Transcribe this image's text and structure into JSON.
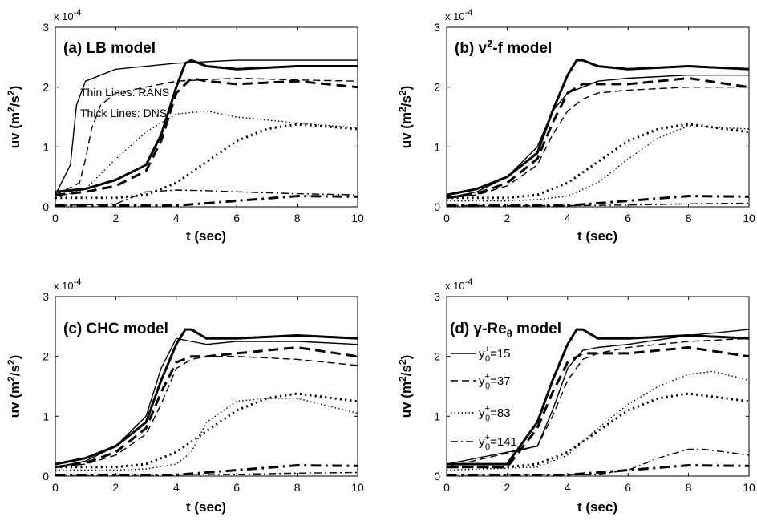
{
  "shared": {
    "xlabel": "t (sec)",
    "ylabel": "uv (m²/s²)",
    "ylabel_parts": {
      "base": "uv (m",
      "sup": "2",
      "mid": "/s",
      "sup2": "2",
      "end": ")"
    },
    "scale": "x 10",
    "scale_exp": "-4",
    "xticks": [
      "0",
      "2",
      "4",
      "6",
      "8",
      "10"
    ],
    "yticks": [
      "0",
      "1",
      "2",
      "3"
    ]
  },
  "panels": [
    {
      "title": "(a) LB model",
      "notes": [
        "Thin Lines: RANS",
        "Thick Lines: DNS"
      ]
    },
    {
      "title": "(b) v²-f model",
      "title_parts": {
        "a": "(b) v",
        "sup": "2",
        "b": "-f model"
      }
    },
    {
      "title": "(c) CHC model"
    },
    {
      "title": "(d) γ-Reθ model",
      "title_parts": {
        "a": "(d) γ-Re",
        "sub": "θ",
        "b": " model"
      },
      "legend": [
        {
          "label": "y0+=15",
          "y": "y",
          "sub": "0",
          "sup": "+",
          "val": "=15",
          "style": "solid"
        },
        {
          "label": "y0+=37",
          "y": "y",
          "sub": "0",
          "sup": "+",
          "val": "=37",
          "style": "dash"
        },
        {
          "label": "y0+=83",
          "y": "y",
          "sub": "0",
          "sup": "+",
          "val": "=83",
          "style": "dot"
        },
        {
          "label": "y0+=141",
          "y": "y",
          "sub": "0",
          "sup": "+",
          "val": "=141",
          "style": "dashdot"
        }
      ]
    }
  ],
  "chart_data": [
    {
      "type": "line",
      "title": "(a) LB model",
      "xlabel": "t (sec)",
      "ylabel": "uv (m²/s²)",
      "xlim": [
        0,
        10
      ],
      "ylim": [
        0,
        3
      ],
      "y_scale": "x 10^-4",
      "series": [
        {
          "kind": "DNS",
          "style": "solid",
          "x": [
            0,
            1,
            2,
            3,
            3.5,
            4,
            4.3,
            4.5,
            5,
            6,
            8,
            10
          ],
          "y": [
            0.25,
            0.3,
            0.45,
            0.7,
            1.2,
            2.0,
            2.4,
            2.45,
            2.35,
            2.3,
            2.35,
            2.35
          ]
        },
        {
          "kind": "DNS",
          "style": "dash",
          "x": [
            0,
            1,
            2,
            3,
            3.5,
            4,
            4.5,
            5,
            6,
            8,
            10
          ],
          "y": [
            0.2,
            0.25,
            0.35,
            0.6,
            1.1,
            1.9,
            2.15,
            2.1,
            2.05,
            2.1,
            2.0
          ]
        },
        {
          "kind": "DNS",
          "style": "dot",
          "x": [
            0,
            2,
            3,
            4,
            5,
            6,
            7,
            8,
            10
          ],
          "y": [
            0.15,
            0.15,
            0.2,
            0.4,
            0.75,
            1.1,
            1.3,
            1.38,
            1.3
          ]
        },
        {
          "kind": "DNS",
          "style": "dashdot",
          "x": [
            0,
            4,
            6,
            8,
            10
          ],
          "y": [
            0.02,
            0.02,
            0.1,
            0.18,
            0.17
          ]
        },
        {
          "kind": "RANS",
          "style": "solid",
          "x": [
            0,
            0.5,
            0.7,
            1,
            1.5,
            2,
            4,
            6,
            8,
            10
          ],
          "y": [
            0.2,
            0.7,
            1.7,
            2.1,
            2.2,
            2.3,
            2.4,
            2.45,
            2.45,
            2.45
          ]
        },
        {
          "kind": "RANS",
          "style": "dash",
          "x": [
            0,
            0.8,
            1,
            1.2,
            1.5,
            2,
            4,
            6,
            8,
            10
          ],
          "y": [
            0.2,
            0.4,
            0.8,
            1.3,
            1.7,
            1.9,
            2.1,
            2.15,
            2.12,
            2.1
          ]
        },
        {
          "kind": "RANS",
          "style": "dot",
          "x": [
            0,
            1,
            2,
            3,
            4,
            5,
            6,
            8,
            10
          ],
          "y": [
            0.15,
            0.3,
            0.8,
            1.25,
            1.55,
            1.6,
            1.5,
            1.4,
            1.32
          ]
        },
        {
          "kind": "RANS",
          "style": "dashdot",
          "x": [
            0,
            2,
            3,
            4,
            5,
            6,
            8,
            10
          ],
          "y": [
            0.02,
            0.05,
            0.25,
            0.28,
            0.27,
            0.25,
            0.22,
            0.2
          ]
        }
      ]
    },
    {
      "type": "line",
      "title": "(b) v²-f model",
      "xlabel": "t (sec)",
      "ylabel": "uv (m²/s²)",
      "xlim": [
        0,
        10
      ],
      "ylim": [
        0,
        3
      ],
      "y_scale": "x 10^-4",
      "series": [
        {
          "kind": "DNS",
          "style": "solid",
          "x": [
            0,
            1,
            2,
            3,
            3.5,
            4,
            4.3,
            4.5,
            5,
            6,
            8,
            10
          ],
          "y": [
            0.2,
            0.3,
            0.5,
            0.9,
            1.6,
            2.2,
            2.45,
            2.45,
            2.35,
            2.3,
            2.35,
            2.3
          ]
        },
        {
          "kind": "DNS",
          "style": "dash",
          "x": [
            0,
            1,
            2,
            3,
            3.5,
            4,
            4.5,
            5,
            6,
            8,
            10
          ],
          "y": [
            0.15,
            0.22,
            0.4,
            0.8,
            1.4,
            1.9,
            2.05,
            2.05,
            2.05,
            2.15,
            2.0
          ]
        },
        {
          "kind": "DNS",
          "style": "dot",
          "x": [
            0,
            2,
            3,
            4,
            5,
            6,
            7,
            8,
            10
          ],
          "y": [
            0.15,
            0.15,
            0.2,
            0.4,
            0.75,
            1.1,
            1.3,
            1.38,
            1.25
          ]
        },
        {
          "kind": "DNS",
          "style": "dashdot",
          "x": [
            0,
            4,
            6,
            8,
            10
          ],
          "y": [
            0.02,
            0.02,
            0.1,
            0.18,
            0.17
          ]
        },
        {
          "kind": "RANS",
          "style": "solid",
          "x": [
            0,
            1,
            2,
            3,
            3.5,
            4,
            4.5,
            5,
            6,
            8,
            10
          ],
          "y": [
            0.15,
            0.25,
            0.5,
            1.0,
            1.6,
            1.9,
            2.0,
            2.1,
            2.15,
            2.2,
            2.2
          ]
        },
        {
          "kind": "RANS",
          "style": "dash",
          "x": [
            0,
            1,
            2,
            3,
            3.5,
            4,
            4.5,
            5,
            6,
            8,
            10
          ],
          "y": [
            0.15,
            0.2,
            0.35,
            0.7,
            1.2,
            1.6,
            1.8,
            1.9,
            1.95,
            2.0,
            2.0
          ]
        },
        {
          "kind": "RANS",
          "style": "dot",
          "x": [
            0,
            2,
            3,
            4,
            5,
            6,
            7,
            8,
            10
          ],
          "y": [
            0.1,
            0.1,
            0.12,
            0.18,
            0.4,
            0.8,
            1.15,
            1.35,
            1.3
          ]
        },
        {
          "kind": "RANS",
          "style": "dashdot",
          "x": [
            0,
            4,
            6,
            8,
            10
          ],
          "y": [
            0.02,
            0.02,
            0.03,
            0.05,
            0.06
          ]
        }
      ]
    },
    {
      "type": "line",
      "title": "(c) CHC model",
      "xlabel": "t (sec)",
      "ylabel": "uv (m²/s²)",
      "xlim": [
        0,
        10
      ],
      "ylim": [
        0,
        3
      ],
      "y_scale": "x 10^-4",
      "series": [
        {
          "kind": "DNS",
          "style": "solid",
          "x": [
            0,
            1,
            2,
            3,
            3.5,
            4,
            4.3,
            4.5,
            5,
            6,
            8,
            10
          ],
          "y": [
            0.2,
            0.3,
            0.5,
            0.9,
            1.6,
            2.2,
            2.45,
            2.45,
            2.3,
            2.3,
            2.35,
            2.3
          ]
        },
        {
          "kind": "DNS",
          "style": "dash",
          "x": [
            0,
            1,
            2,
            3,
            3.5,
            4,
            4.5,
            5,
            6,
            8,
            10
          ],
          "y": [
            0.15,
            0.22,
            0.4,
            0.8,
            1.4,
            1.9,
            2.0,
            2.0,
            2.05,
            2.15,
            2.0
          ]
        },
        {
          "kind": "DNS",
          "style": "dot",
          "x": [
            0,
            2,
            3,
            4,
            5,
            6,
            7,
            8,
            10
          ],
          "y": [
            0.15,
            0.15,
            0.2,
            0.4,
            0.75,
            1.1,
            1.3,
            1.38,
            1.25
          ]
        },
        {
          "kind": "DNS",
          "style": "dashdot",
          "x": [
            0,
            4,
            6,
            8,
            10
          ],
          "y": [
            0.02,
            0.02,
            0.1,
            0.18,
            0.17
          ]
        },
        {
          "kind": "RANS",
          "style": "solid",
          "x": [
            0,
            1,
            2,
            3,
            3.5,
            4,
            4.5,
            5,
            6,
            8,
            10
          ],
          "y": [
            0.15,
            0.25,
            0.5,
            1.0,
            1.8,
            2.3,
            2.25,
            2.2,
            2.25,
            2.25,
            2.2
          ]
        },
        {
          "kind": "RANS",
          "style": "dash",
          "x": [
            0,
            1,
            2,
            3,
            3.5,
            4,
            4.5,
            5,
            6,
            8,
            10
          ],
          "y": [
            0.15,
            0.2,
            0.35,
            0.7,
            1.2,
            1.8,
            1.95,
            2.0,
            2.0,
            1.95,
            1.85
          ]
        },
        {
          "kind": "RANS",
          "style": "dot",
          "x": [
            0,
            2,
            3,
            4,
            4.5,
            5,
            6,
            7,
            8,
            10
          ],
          "y": [
            0.1,
            0.1,
            0.12,
            0.2,
            0.4,
            0.9,
            1.25,
            1.3,
            1.3,
            1.05
          ]
        },
        {
          "kind": "RANS",
          "style": "dashdot",
          "x": [
            0,
            4,
            6,
            8,
            10
          ],
          "y": [
            0.02,
            0.02,
            0.03,
            0.05,
            0.06
          ]
        }
      ]
    },
    {
      "type": "line",
      "title": "(d) γ-Reθ model",
      "xlabel": "t (sec)",
      "ylabel": "uv (m²/s²)",
      "xlim": [
        0,
        10
      ],
      "ylim": [
        0,
        3
      ],
      "y_scale": "x 10^-4",
      "series": [
        {
          "kind": "DNS",
          "style": "solid",
          "x": [
            0,
            1,
            2,
            3,
            3.5,
            4,
            4.3,
            4.5,
            5,
            6,
            8,
            10
          ],
          "y": [
            0.2,
            0.2,
            0.2,
            0.9,
            1.6,
            2.2,
            2.45,
            2.45,
            2.3,
            2.3,
            2.35,
            2.3
          ]
        },
        {
          "kind": "DNS",
          "style": "dash",
          "x": [
            0,
            1,
            2,
            3,
            3.5,
            4,
            4.5,
            5,
            6,
            8,
            10
          ],
          "y": [
            0.15,
            0.15,
            0.15,
            0.8,
            1.4,
            1.9,
            2.05,
            2.05,
            2.05,
            2.15,
            2.0
          ]
        },
        {
          "kind": "DNS",
          "style": "dot",
          "x": [
            0,
            2,
            3,
            4,
            5,
            6,
            7,
            8,
            10
          ],
          "y": [
            0.15,
            0.15,
            0.2,
            0.4,
            0.75,
            1.1,
            1.3,
            1.38,
            1.25
          ]
        },
        {
          "kind": "DNS",
          "style": "dashdot",
          "x": [
            0,
            4,
            6,
            8,
            10
          ],
          "y": [
            0.02,
            0.02,
            0.1,
            0.18,
            0.17
          ]
        },
        {
          "kind": "RANS",
          "style": "solid",
          "x": [
            0,
            3,
            3.5,
            4,
            4.5,
            5,
            6,
            8,
            10
          ],
          "y": [
            0.2,
            0.5,
            1.1,
            1.8,
            2.1,
            2.15,
            2.2,
            2.35,
            2.45
          ]
        },
        {
          "kind": "RANS",
          "style": "dash",
          "x": [
            0,
            3,
            3.5,
            4,
            4.5,
            5,
            6,
            8,
            10
          ],
          "y": [
            0.15,
            0.5,
            1.0,
            1.6,
            1.95,
            2.05,
            2.15,
            2.25,
            2.3
          ]
        },
        {
          "kind": "RANS",
          "style": "dot",
          "x": [
            0,
            3,
            4,
            5,
            6,
            7,
            8,
            8.8,
            10
          ],
          "y": [
            0.1,
            0.15,
            0.35,
            0.8,
            1.2,
            1.5,
            1.7,
            1.75,
            1.6
          ]
        },
        {
          "kind": "RANS",
          "style": "dashdot",
          "x": [
            0,
            5,
            6,
            7,
            8,
            8.5,
            10
          ],
          "y": [
            0.02,
            0.03,
            0.1,
            0.3,
            0.45,
            0.45,
            0.35
          ]
        }
      ]
    }
  ]
}
